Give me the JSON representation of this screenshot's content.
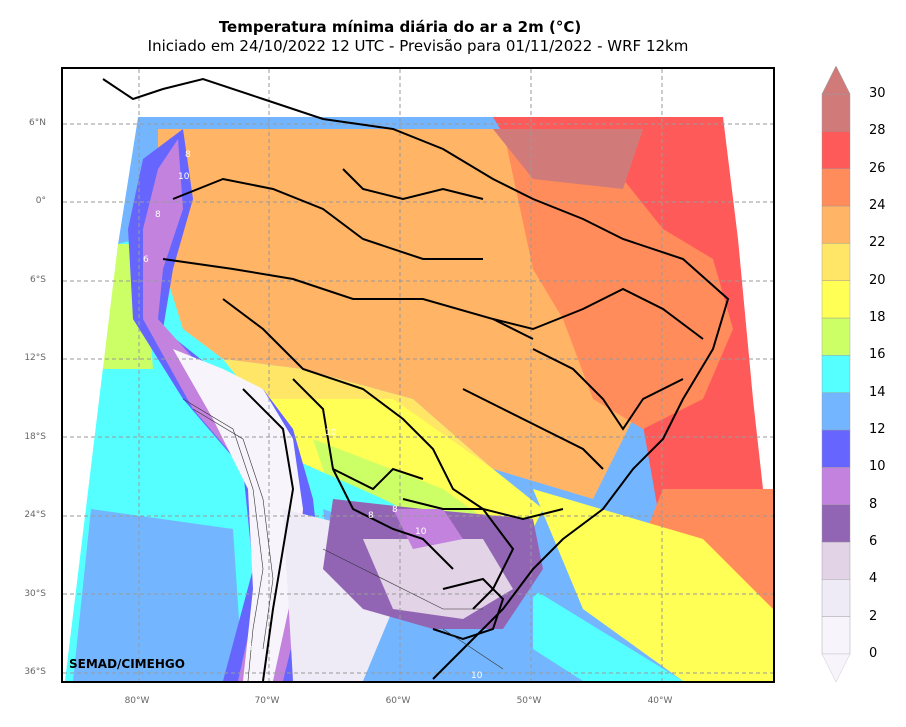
{
  "header": {
    "title": "Temperatura mínima diária do ar a 2m (°C)",
    "subtitle": "Iniciado em 24/10/2022 12 UTC - Previsão para 01/11/2022 - WRF 12km"
  },
  "map": {
    "lat_labels": [
      "6°N",
      "0°",
      "6°S",
      "12°S",
      "18°S",
      "24°S",
      "30°S",
      "36°S"
    ],
    "lon_labels": [
      "80°W",
      "70°W",
      "60°W",
      "50°W",
      "40°W"
    ],
    "contour_labels": [
      "6",
      "8",
      "10",
      "8",
      "10",
      "6",
      "8",
      "10",
      "8",
      "10"
    ],
    "credit": "SEMAD/CIMEHGO"
  },
  "colorbar": {
    "ticks": [
      "0",
      "2",
      "4",
      "6",
      "8",
      "10",
      "12",
      "14",
      "16",
      "18",
      "20",
      "22",
      "24",
      "26",
      "28",
      "30"
    ],
    "colors": [
      "#f7f5fb",
      "#eeeaf6",
      "#e2d3e6",
      "#9265b4",
      "#c282de",
      "#6666ff",
      "#73b6ff",
      "#55ffff",
      "#ccff66",
      "#ffff55",
      "#ffe666",
      "#ffb466",
      "#ff8c5a",
      "#ff5a5a",
      "#d07a7a"
    ]
  }
}
